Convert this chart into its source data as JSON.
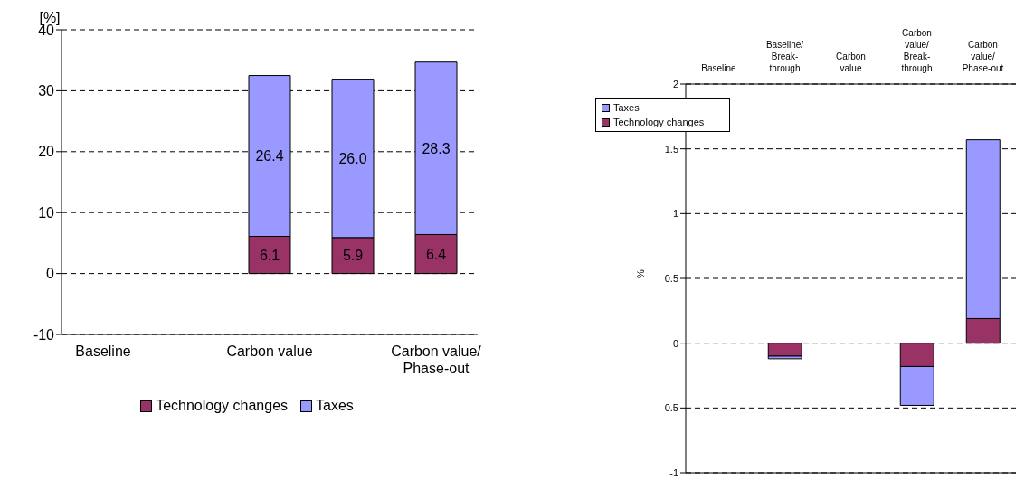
{
  "chart_data": [
    {
      "type": "bar",
      "stacked": true,
      "ylabel": "[%]",
      "categories": [
        "Baseline",
        null,
        "Carbon value",
        null,
        "Carbon value/Phase-out"
      ],
      "series": [
        {
          "name": "Technology changes",
          "color": "#993366",
          "values": [
            null,
            null,
            6.1,
            5.9,
            6.4
          ],
          "value_labels": [
            null,
            null,
            "6.1",
            "5.9",
            "6.4"
          ]
        },
        {
          "name": "Taxes",
          "color": "#9999ff",
          "values": [
            null,
            null,
            26.4,
            26.0,
            28.3
          ],
          "value_labels": [
            null,
            null,
            "26.4",
            "26.0",
            "28.3"
          ]
        }
      ],
      "ylim": [
        -10,
        40
      ],
      "yticks": [
        -10,
        0,
        10,
        20,
        30,
        40
      ],
      "grid": "y",
      "legend": "bottom"
    },
    {
      "type": "bar",
      "stacked": true,
      "ylabel": "%",
      "categories": [
        "Baseline",
        "Baseline/Break-through",
        "Carbon value",
        "Carbon value/Break-through",
        "Carbon value/Phase-out"
      ],
      "series": [
        {
          "name": "Technology changes",
          "color": "#993366",
          "values": [
            null,
            -0.1,
            null,
            -0.18,
            0.19
          ]
        },
        {
          "name": "Taxes",
          "color": "#9999ff",
          "values": [
            null,
            -0.02,
            null,
            -0.3,
            1.38
          ]
        }
      ],
      "ylim": [
        -1,
        2
      ],
      "yticks": [
        -1,
        -0.5,
        0,
        0.5,
        1,
        1.5,
        2
      ],
      "grid": "y",
      "legend": "top left"
    }
  ]
}
